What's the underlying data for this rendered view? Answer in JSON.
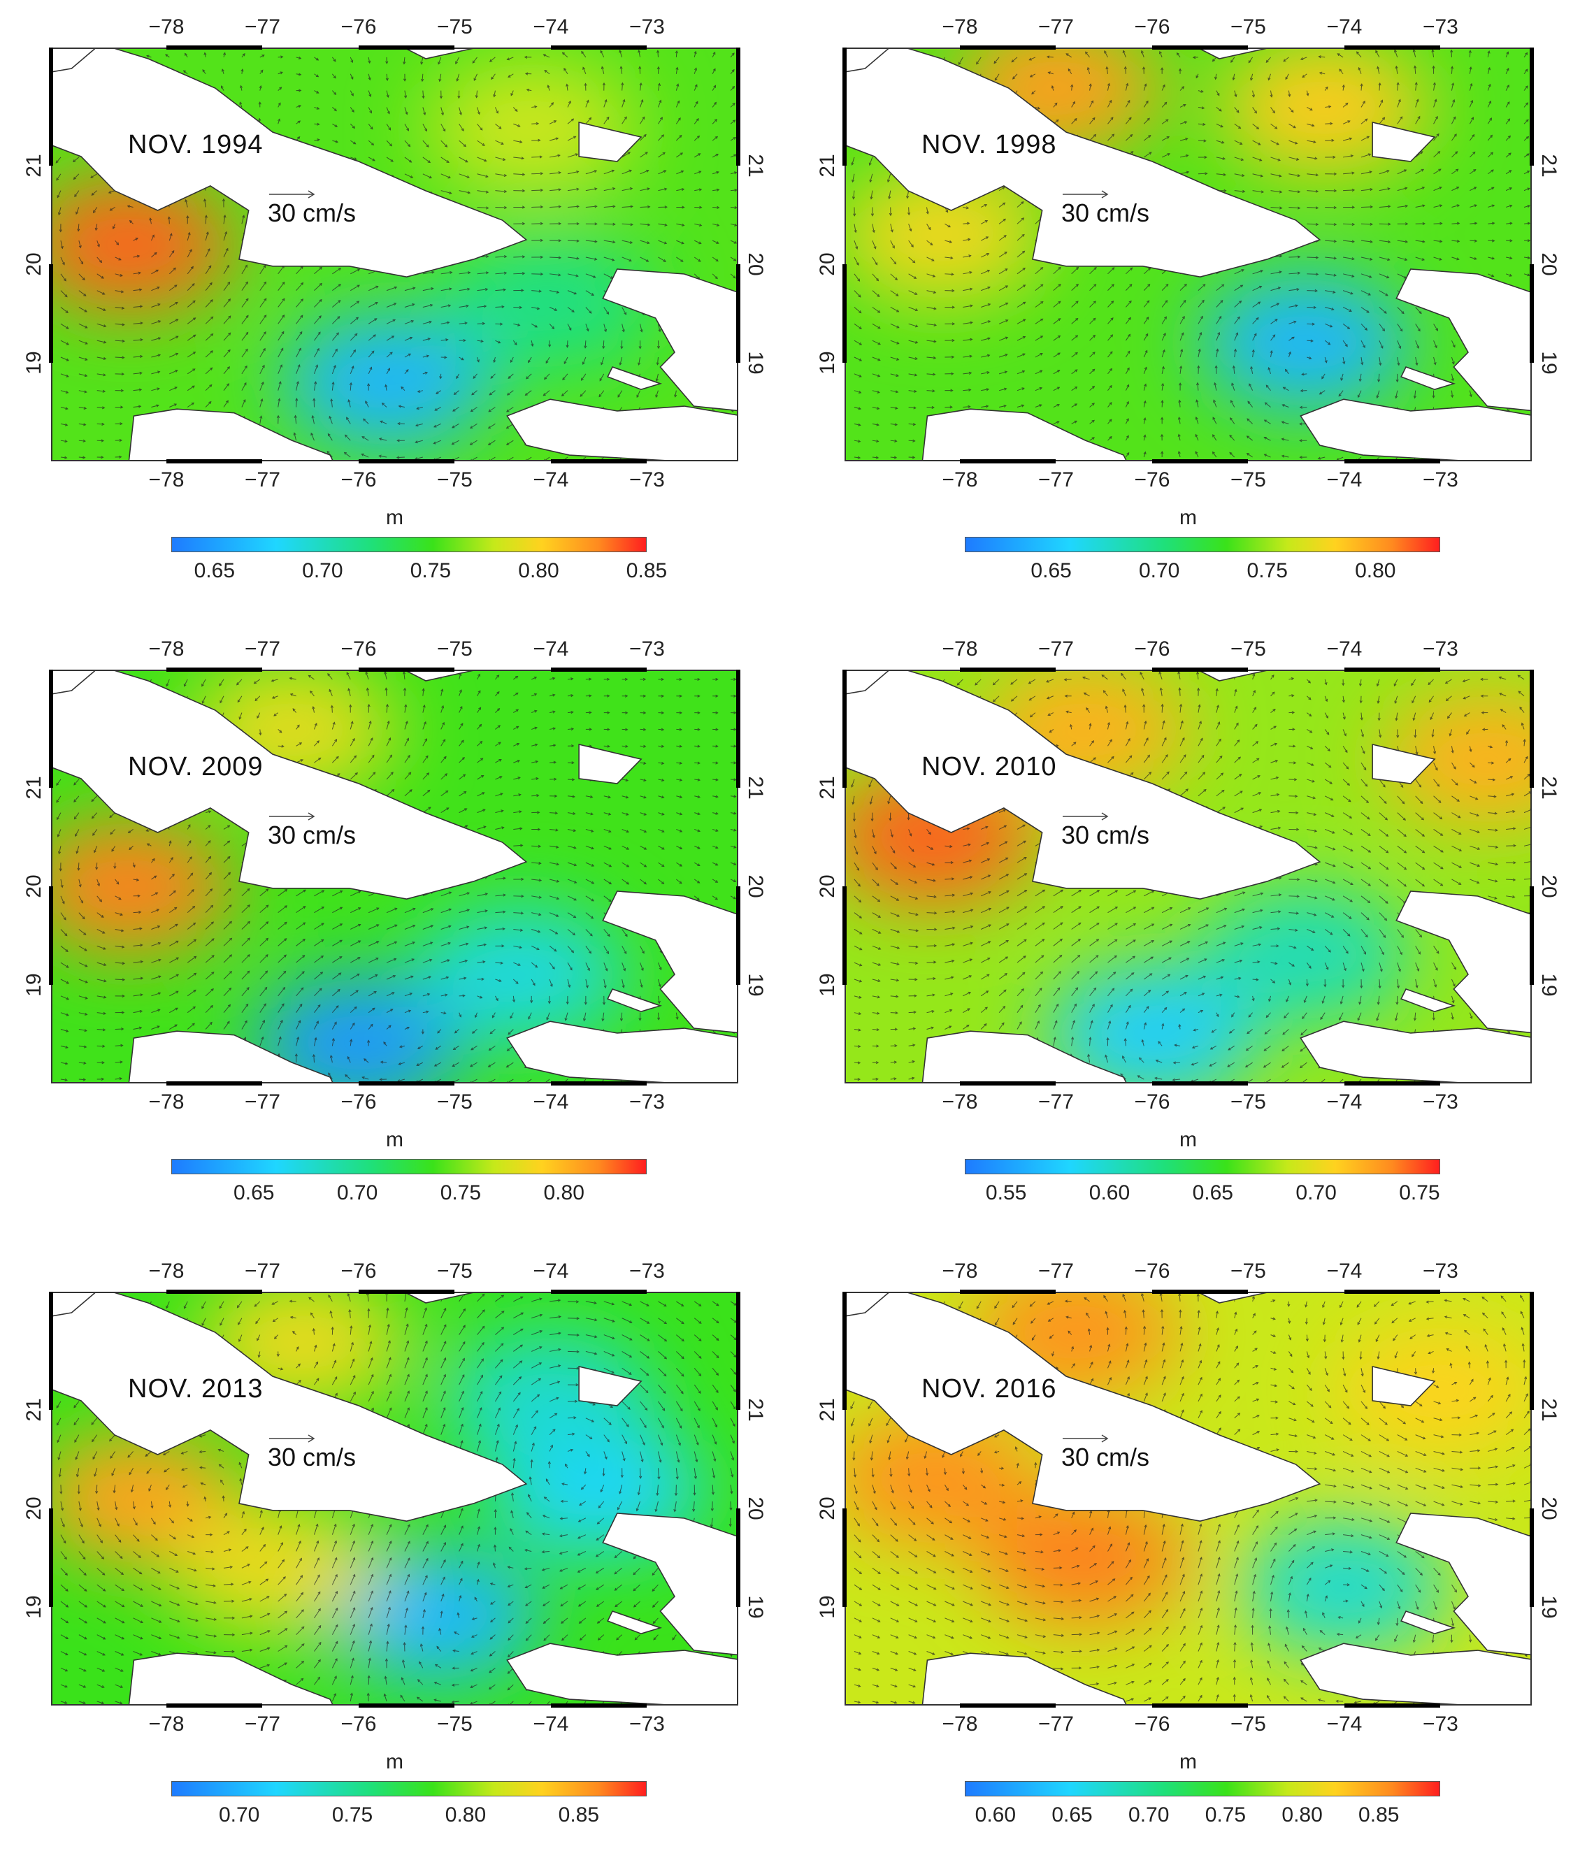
{
  "units_label": "m",
  "velocity_scale_label": "30 cm/s",
  "panels": [
    {
      "label": "NOV. 1994",
      "lon_ticks": [
        "−78",
        "−77",
        "−76",
        "−75",
        "−74",
        "−73"
      ],
      "lat_ticks": [
        "21",
        "20",
        "19"
      ],
      "colorbar_ticks": [
        "0.65",
        "0.70",
        "0.75",
        "0.80",
        "0.85"
      ],
      "colorbar_range": [
        0.63,
        0.85
      ],
      "field": {
        "background_level": 0.73,
        "features": [
          {
            "type": "low",
            "level": 0.65,
            "lon": -75.7,
            "lat": 18.8
          },
          {
            "type": "low",
            "level": 0.69,
            "lon": -74.0,
            "lat": 19.6
          },
          {
            "type": "high",
            "level": 0.83,
            "lon": -78.4,
            "lat": 20.2
          },
          {
            "type": "high",
            "level": 0.76,
            "lon": -74.2,
            "lat": 21.4
          }
        ]
      }
    },
    {
      "label": "NOV. 1998",
      "lon_ticks": [
        "−78",
        "−77",
        "−76",
        "−75",
        "−74",
        "−73"
      ],
      "lat_ticks": [
        "21",
        "20",
        "19"
      ],
      "colorbar_ticks": [
        "0.65",
        "0.70",
        "0.75",
        "0.80"
      ],
      "colorbar_range": [
        0.61,
        0.83
      ],
      "field": {
        "background_level": 0.71,
        "features": [
          {
            "type": "low",
            "level": 0.63,
            "lon": -74.4,
            "lat": 19.2
          },
          {
            "type": "high",
            "level": 0.79,
            "lon": -77.0,
            "lat": 21.8
          },
          {
            "type": "high",
            "level": 0.77,
            "lon": -74.2,
            "lat": 21.6
          },
          {
            "type": "high",
            "level": 0.76,
            "lon": -78.2,
            "lat": 20.3
          }
        ]
      }
    },
    {
      "label": "NOV. 2009",
      "lon_ticks": [
        "−78",
        "−77",
        "−76",
        "−75",
        "−74",
        "−73"
      ],
      "lat_ticks": [
        "21",
        "20",
        "19"
      ],
      "colorbar_ticks": [
        "0.65",
        "0.70",
        "0.75",
        "0.80"
      ],
      "colorbar_range": [
        0.61,
        0.84
      ],
      "field": {
        "background_level": 0.71,
        "features": [
          {
            "type": "low",
            "level": 0.62,
            "lon": -76.0,
            "lat": 18.4
          },
          {
            "type": "low",
            "level": 0.65,
            "lon": -74.3,
            "lat": 19.1
          },
          {
            "type": "high",
            "level": 0.81,
            "lon": -78.4,
            "lat": 20.0
          },
          {
            "type": "high",
            "level": 0.76,
            "lon": -76.7,
            "lat": 21.6
          }
        ]
      }
    },
    {
      "label": "NOV. 2010",
      "lon_ticks": [
        "−78",
        "−77",
        "−76",
        "−75",
        "−74",
        "−73"
      ],
      "lat_ticks": [
        "21",
        "20",
        "19"
      ],
      "colorbar_ticks": [
        "0.55",
        "0.60",
        "0.65",
        "0.70",
        "0.75"
      ],
      "colorbar_range": [
        0.53,
        0.76
      ],
      "field": {
        "background_level": 0.65,
        "features": [
          {
            "type": "low",
            "level": 0.56,
            "lon": -76.0,
            "lat": 18.5
          },
          {
            "type": "low",
            "level": 0.58,
            "lon": -74.4,
            "lat": 19.3
          },
          {
            "type": "high",
            "level": 0.74,
            "lon": -78.3,
            "lat": 20.5
          },
          {
            "type": "high",
            "level": 0.71,
            "lon": -76.7,
            "lat": 21.6
          },
          {
            "type": "high",
            "level": 0.71,
            "lon": -72.5,
            "lat": 21.3
          }
        ]
      }
    },
    {
      "label": "NOV. 2013",
      "lon_ticks": [
        "−78",
        "−77",
        "−76",
        "−75",
        "−74",
        "−73"
      ],
      "lat_ticks": [
        "21",
        "20",
        "19"
      ],
      "colorbar_ticks": [
        "0.70",
        "0.75",
        "0.80",
        "0.85"
      ],
      "colorbar_range": [
        0.67,
        0.88
      ],
      "field": {
        "background_level": 0.76,
        "features": [
          {
            "type": "low",
            "level": 0.69,
            "lon": -75.2,
            "lat": 18.9
          },
          {
            "type": "low",
            "level": 0.7,
            "lon": -73.5,
            "lat": 20.2
          },
          {
            "type": "low",
            "level": 0.71,
            "lon": -74.0,
            "lat": 21.1
          },
          {
            "type": "high",
            "level": 0.84,
            "lon": -78.3,
            "lat": 20.1
          },
          {
            "type": "high",
            "level": 0.81,
            "lon": -76.9,
            "lat": 19.4
          },
          {
            "type": "high",
            "level": 0.81,
            "lon": -76.6,
            "lat": 21.7
          }
        ]
      }
    },
    {
      "label": "NOV. 2016",
      "lon_ticks": [
        "−78",
        "−77",
        "−76",
        "−75",
        "−74",
        "−73"
      ],
      "lat_ticks": [
        "21",
        "20",
        "19"
      ],
      "colorbar_ticks": [
        "0.60",
        "0.65",
        "0.70",
        "0.75",
        "0.80",
        "0.85"
      ],
      "colorbar_range": [
        0.58,
        0.89
      ],
      "field": {
        "background_level": 0.76,
        "features": [
          {
            "type": "low",
            "level": 0.64,
            "lon": -74.0,
            "lat": 19.2
          },
          {
            "type": "high",
            "level": 0.85,
            "lon": -76.7,
            "lat": 19.5
          },
          {
            "type": "high",
            "level": 0.84,
            "lon": -78.3,
            "lat": 20.3
          },
          {
            "type": "high",
            "level": 0.84,
            "lon": -76.8,
            "lat": 21.8
          },
          {
            "type": "high",
            "level": 0.8,
            "lon": -73.0,
            "lat": 21.2
          }
        ]
      }
    }
  ],
  "colors": {
    "land": "#ffffff",
    "coastline": "#333333",
    "vector": "#222222",
    "colormap": [
      "#1e7bff",
      "#1fd6ff",
      "#1fe07a",
      "#3ae21a",
      "#c6e91a",
      "#ffd21f",
      "#ff8a1f",
      "#ff1f1f"
    ]
  }
}
